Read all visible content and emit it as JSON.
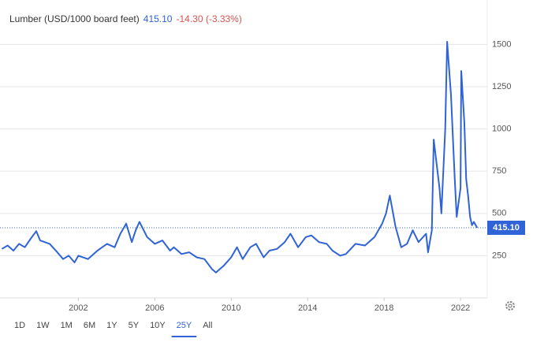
{
  "header": {
    "title": "Lumber (USD/1000 board feet)",
    "price": "415.10",
    "change": "-14.30 (-3.33%)"
  },
  "range_buttons": [
    "1D",
    "1W",
    "1M",
    "6M",
    "1Y",
    "5Y",
    "10Y",
    "25Y",
    "All"
  ],
  "active_range": "25Y",
  "chart_data": {
    "type": "line",
    "color": "#2f63d6",
    "x": [
      1998.0,
      1998.3,
      1998.6,
      1998.9,
      1999.2,
      1999.5,
      1999.8,
      2000.0,
      2000.5,
      2000.9,
      2001.2,
      2001.5,
      2001.8,
      2002.0,
      2002.5,
      2003.0,
      2003.5,
      2003.9,
      2004.2,
      2004.5,
      2004.8,
      2005.0,
      2005.2,
      2005.6,
      2006.0,
      2006.4,
      2006.8,
      2007.0,
      2007.4,
      2007.8,
      2008.2,
      2008.6,
      2009.0,
      2009.2,
      2009.6,
      2010.0,
      2010.3,
      2010.6,
      2011.0,
      2011.3,
      2011.7,
      2012.0,
      2012.4,
      2012.8,
      2013.1,
      2013.5,
      2013.9,
      2014.2,
      2014.6,
      2015.0,
      2015.3,
      2015.7,
      2016.0,
      2016.5,
      2017.0,
      2017.5,
      2017.9,
      2018.1,
      2018.3,
      2018.6,
      2018.9,
      2019.2,
      2019.5,
      2019.8,
      2020.2,
      2020.3,
      2020.5,
      2020.6,
      2020.9,
      2021.0,
      2021.2,
      2021.3,
      2021.5,
      2021.7,
      2021.8,
      2022.0,
      2022.04,
      2022.2,
      2022.3,
      2022.4,
      2022.5,
      2022.6,
      2022.7,
      2022.8,
      2022.87
    ],
    "values": [
      290,
      310,
      280,
      320,
      300,
      350,
      395,
      340,
      320,
      270,
      230,
      250,
      210,
      250,
      230,
      280,
      320,
      300,
      380,
      440,
      330,
      400,
      450,
      360,
      320,
      340,
      280,
      300,
      260,
      270,
      240,
      230,
      170,
      150,
      190,
      240,
      300,
      230,
      300,
      320,
      240,
      280,
      290,
      330,
      380,
      300,
      360,
      370,
      330,
      320,
      280,
      250,
      260,
      320,
      310,
      360,
      440,
      500,
      606,
      420,
      300,
      320,
      400,
      330,
      380,
      270,
      400,
      937,
      650,
      500,
      1000,
      1516,
      1200,
      700,
      480,
      650,
      1343,
      1040,
      700,
      600,
      480,
      430,
      450,
      429,
      415.1
    ],
    "last_value_label": "415.10",
    "xlim": [
      1997.9,
      2023.4
    ],
    "ylim": [
      0,
      1763
    ],
    "xticks": [
      2002,
      2006,
      2010,
      2014,
      2018,
      2022
    ],
    "yticks": [
      250,
      500,
      750,
      1000,
      1250,
      1500
    ],
    "grid": true
  }
}
